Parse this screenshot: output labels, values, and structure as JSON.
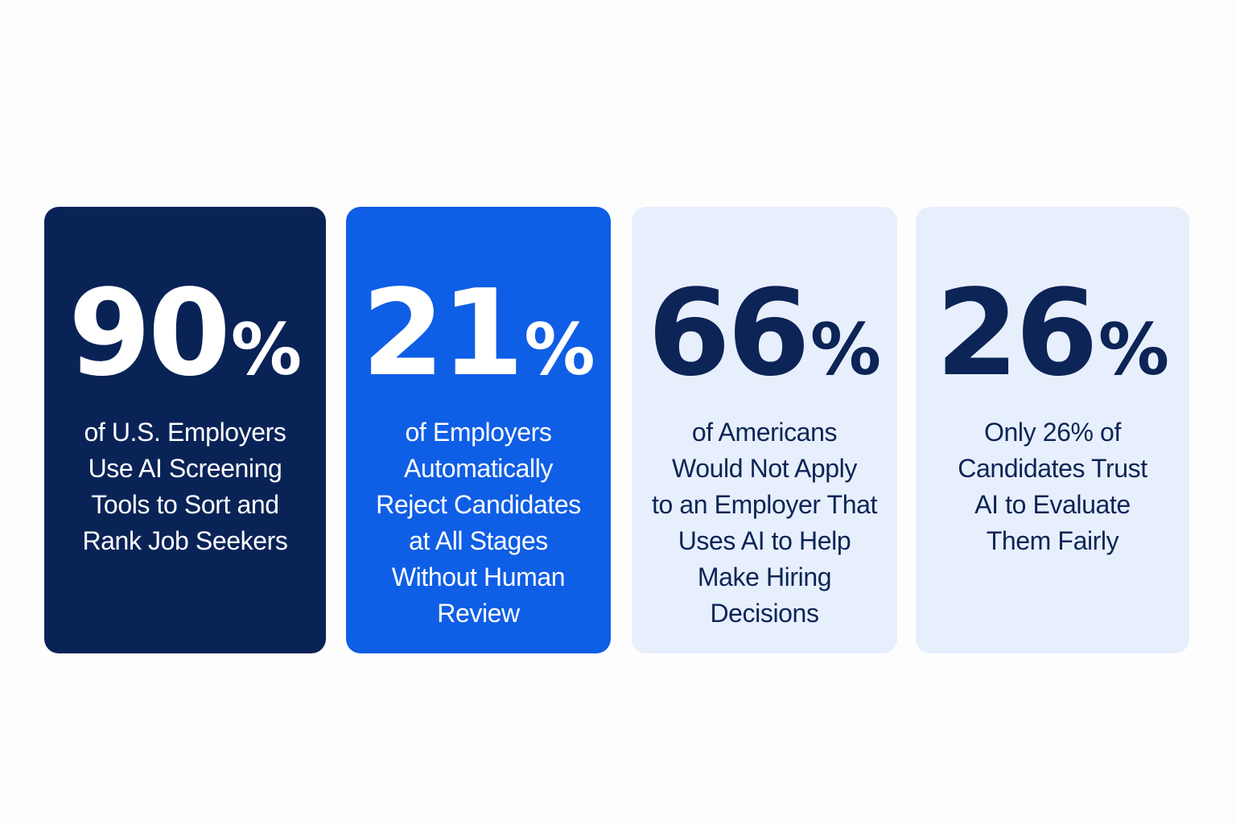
{
  "stats": [
    {
      "number": "90",
      "unit": "%",
      "caption": "of U.S. Employers\nUse AI Screening\nTools to Sort and\nRank Job Seekers",
      "background": "#0a2357",
      "text_color": "#ffffff"
    },
    {
      "number": "21",
      "unit": "%",
      "caption": "of Employers\nAutomatically\nReject Candidates\nat All Stages\nWithout Human\nReview",
      "background": "#0f5ee6",
      "text_color": "#ffffff"
    },
    {
      "number": "66",
      "unit": "%",
      "caption": "of Americans\nWould Not Apply\nto an Employer That\nUses AI to Help\nMake Hiring\nDecisions",
      "background": "#e7effc",
      "text_color": "#0c2456"
    },
    {
      "number": "26",
      "unit": "%",
      "caption": "Only 26% of\nCandidates Trust\nAI to Evaluate\nThem Fairly",
      "background": "#e7effc",
      "text_color": "#0c2456"
    }
  ]
}
